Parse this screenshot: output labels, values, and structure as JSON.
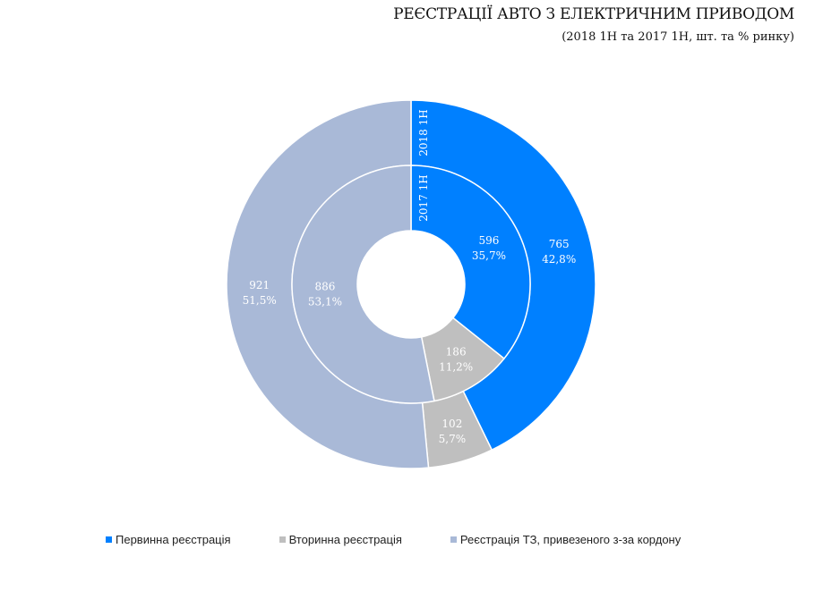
{
  "chart_data": {
    "type": "pie",
    "title": "РЕЄСТРАЦІЇ АВТО З ЕЛЕКТРИЧНИМ ПРИВОДОМ",
    "subtitle": "(2018 1H та 2017 1H, шт. та % ринку)",
    "categories": [
      "Первинна реєстрація",
      "Вторинна реєстрація",
      "Реєстрація ТЗ, привезеного з-за кордону"
    ],
    "colors": [
      "#0080FF",
      "#BFBFBF",
      "#A9B9D7"
    ],
    "series": [
      {
        "name": "2018 1H",
        "values": [
          765,
          102,
          921
        ],
        "percent_labels": [
          "42,8%",
          "5,7%",
          "51,5%"
        ]
      },
      {
        "name": "2017 1H",
        "values": [
          596,
          186,
          886
        ],
        "percent_labels": [
          "35,7%",
          "11,2%",
          "53,1%"
        ]
      }
    ],
    "legend_position": "bottom"
  }
}
